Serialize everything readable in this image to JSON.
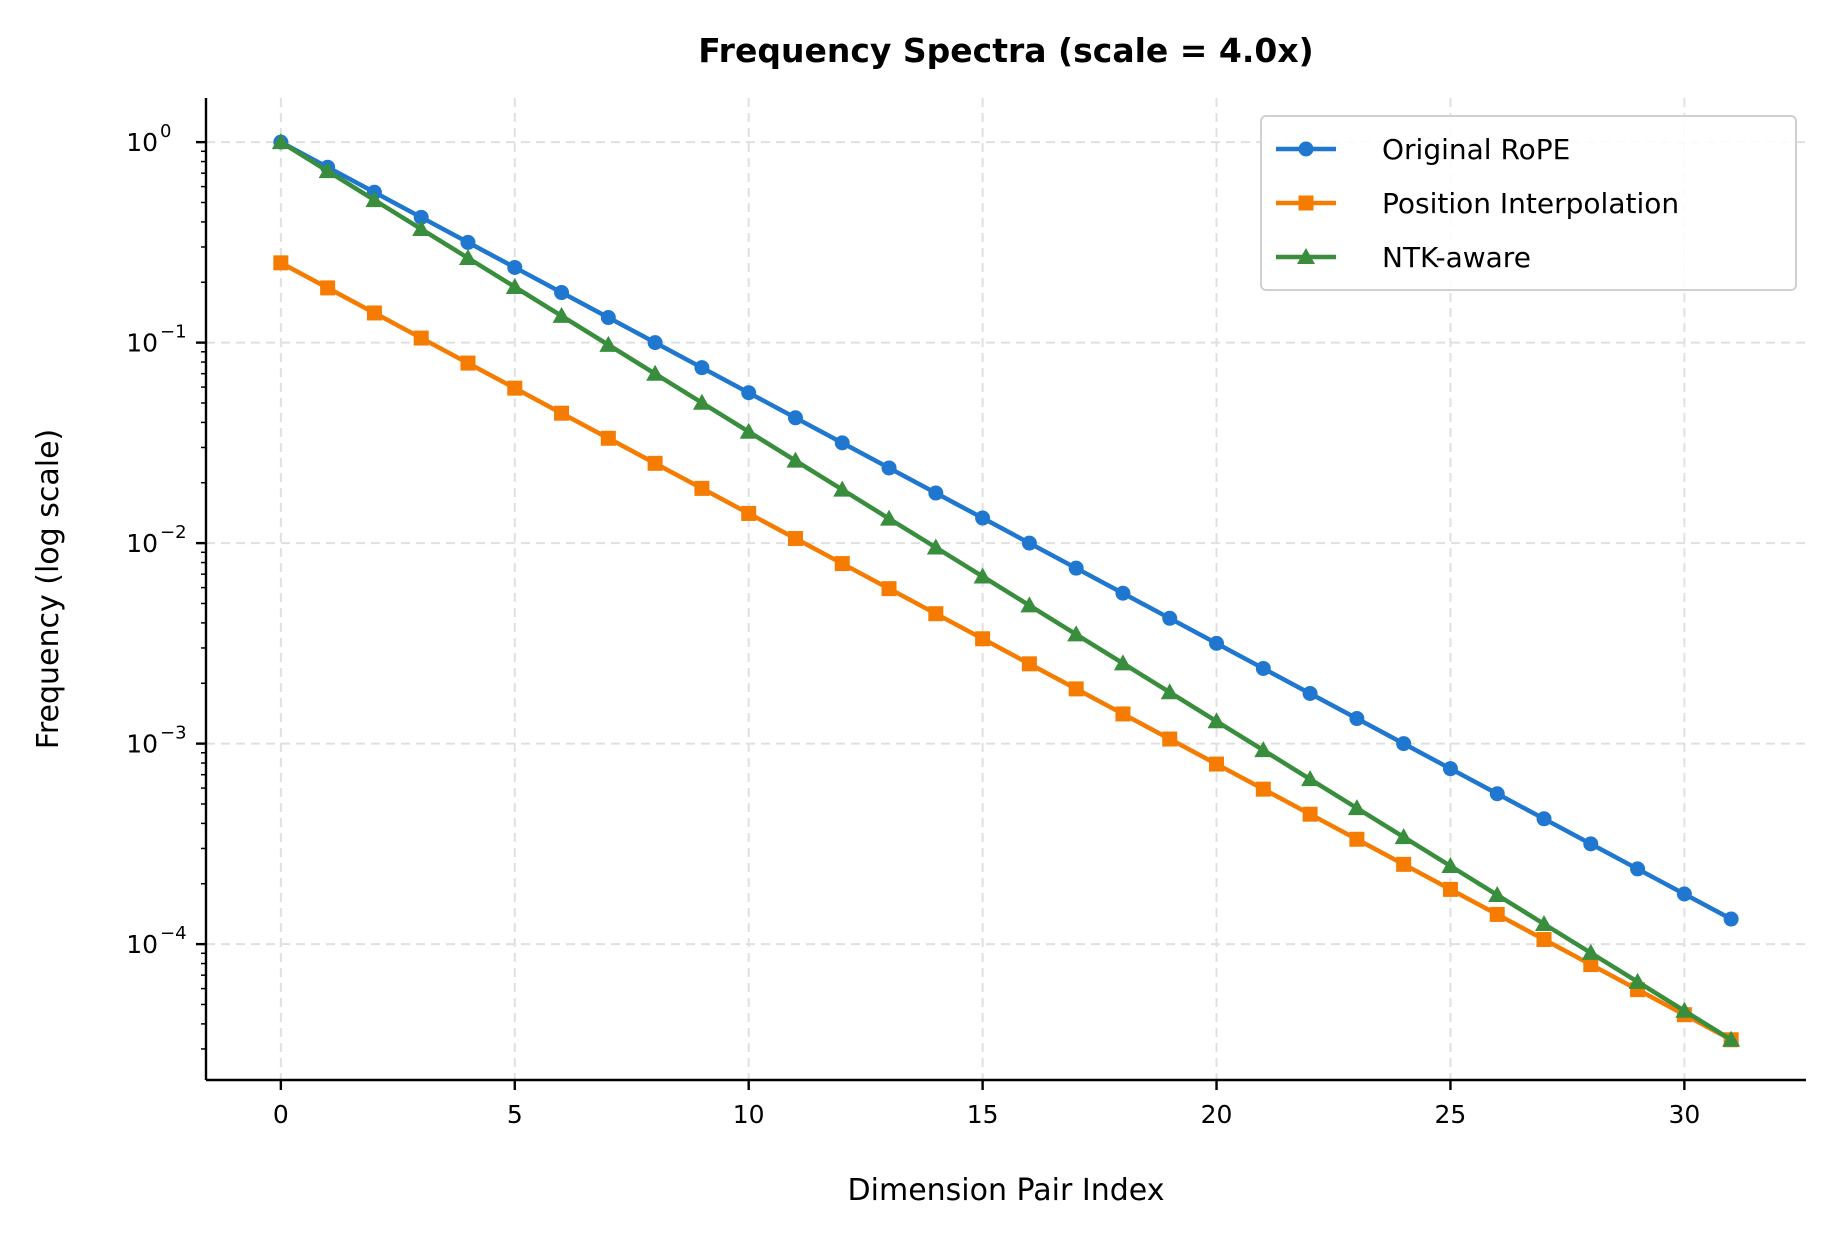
{
  "chart_data": {
    "type": "line",
    "title": "Frequency Spectra (scale = 4.0x)",
    "xlabel": "Dimension Pair Index",
    "ylabel": "Frequency (log scale)",
    "xlim": [
      -1.6,
      32.6
    ],
    "ylim": [
      2.1e-05,
      1.66
    ],
    "yscale": "log",
    "grid": true,
    "legend_position": "top-right",
    "x_ticks": [
      "0",
      "5",
      "10",
      "15",
      "20",
      "25",
      "30"
    ],
    "x_tick_values": [
      0,
      5,
      10,
      15,
      20,
      25,
      30
    ],
    "y_tick_exponents": [
      "0",
      "−1",
      "−2",
      "−3",
      "−4"
    ],
    "y_tick_values": [
      1,
      0.1,
      0.01,
      0.001,
      0.0001
    ],
    "x": [
      0,
      1,
      2,
      3,
      4,
      5,
      6,
      7,
      8,
      9,
      10,
      11,
      12,
      13,
      14,
      15,
      16,
      17,
      18,
      19,
      20,
      21,
      22,
      23,
      24,
      25,
      26,
      27,
      28,
      29,
      30,
      31
    ],
    "series": [
      {
        "name": "Original RoPE",
        "color": "#1f77d0",
        "marker": "circle",
        "values": [
          1,
          0.7499,
          0.5623,
          0.4217,
          0.3162,
          0.2371,
          0.1778,
          0.1334,
          0.1,
          0.07499,
          0.05623,
          0.04217,
          0.03162,
          0.02371,
          0.01778,
          0.01334,
          0.01,
          0.007499,
          0.005623,
          0.004217,
          0.003162,
          0.002371,
          0.001778,
          0.001334,
          0.001,
          0.0007499,
          0.0005623,
          0.0004217,
          0.0003162,
          0.0002371,
          0.0001778,
          0.0001334
        ]
      },
      {
        "name": "Position Interpolation",
        "color": "#f57c00",
        "marker": "square",
        "values": [
          0.25,
          0.1875,
          0.1406,
          0.1054,
          0.07906,
          0.05928,
          0.04446,
          0.03334,
          0.025,
          0.01875,
          0.01406,
          0.01054,
          0.007906,
          0.005928,
          0.004446,
          0.003334,
          0.0025,
          0.001875,
          0.001406,
          0.001054,
          0.0007906,
          0.0005928,
          0.0004446,
          0.0003334,
          0.00025,
          0.0001875,
          0.0001406,
          0.0001054,
          7.906e-05,
          5.928e-05,
          4.446e-05,
          3.334e-05
        ]
      },
      {
        "name": "NTK-aware",
        "color": "#388e3c",
        "marker": "triangle",
        "values": [
          1,
          0.717,
          0.5141,
          0.3686,
          0.2643,
          0.1895,
          0.1359,
          0.09751,
          0.06992,
          0.05013,
          0.03595,
          0.02578,
          0.01848,
          0.01325,
          0.009508,
          0.006818,
          0.004889,
          0.003505,
          0.002514,
          0.001803,
          0.001292,
          0.0009273,
          0.0006649,
          0.0004768,
          0.0003419,
          0.0002452,
          0.0001758,
          0.000126,
          9.041e-05,
          6.483e-05,
          4.649e-05,
          3.334e-05
        ]
      }
    ]
  }
}
